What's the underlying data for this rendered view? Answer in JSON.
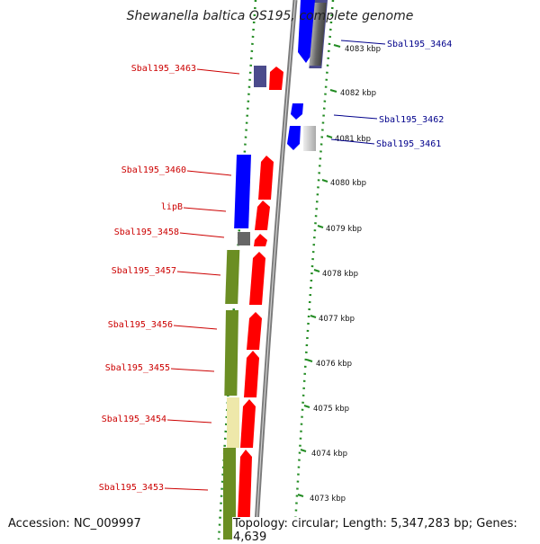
{
  "title": "Shewanella baltica OS195, complete genome",
  "footer": {
    "accession": "Accession: NC_009997",
    "topology": "Topology: circular; Length: 5,347,283 bp; Genes: 4,639"
  },
  "ticks": [
    {
      "label": "4083 kbp"
    },
    {
      "label": "4082 kbp"
    },
    {
      "label": "4081 kbp"
    },
    {
      "label": "4080 kbp"
    },
    {
      "label": "4079 kbp"
    },
    {
      "label": "4078 kbp"
    },
    {
      "label": "4077 kbp"
    },
    {
      "label": "4076 kbp"
    },
    {
      "label": "4075 kbp"
    },
    {
      "label": "4074 kbp"
    },
    {
      "label": "4073 kbp"
    }
  ],
  "gene_labels": [
    {
      "text": "Sbal195_3464",
      "color": "#00008b"
    },
    {
      "text": "Sbal195_3463",
      "color": "#cc0000"
    },
    {
      "text": "Sbal195_3462",
      "color": "#00008b"
    },
    {
      "text": "Sbal195_3461",
      "color": "#00008b"
    },
    {
      "text": "Sbal195_3460",
      "color": "#cc0000"
    },
    {
      "text": "lipB",
      "color": "#cc0000"
    },
    {
      "text": "Sbal195_3458",
      "color": "#cc0000"
    },
    {
      "text": "Sbal195_3457",
      "color": "#cc0000"
    },
    {
      "text": "Sbal195_3456",
      "color": "#cc0000"
    },
    {
      "text": "Sbal195_3455",
      "color": "#cc0000"
    },
    {
      "text": "Sbal195_3454",
      "color": "#cc0000"
    },
    {
      "text": "Sbal195_3453",
      "color": "#cc0000"
    }
  ],
  "colors": {
    "cds": "#ff0000",
    "reverse_cds": "#0000ff",
    "gene": "#666666",
    "cog_green": "#6b8e23",
    "cog_yellow": "#eee8aa",
    "cog_navy": "#4b4b8c",
    "backbone": "#888888",
    "dots": "#228b22"
  }
}
